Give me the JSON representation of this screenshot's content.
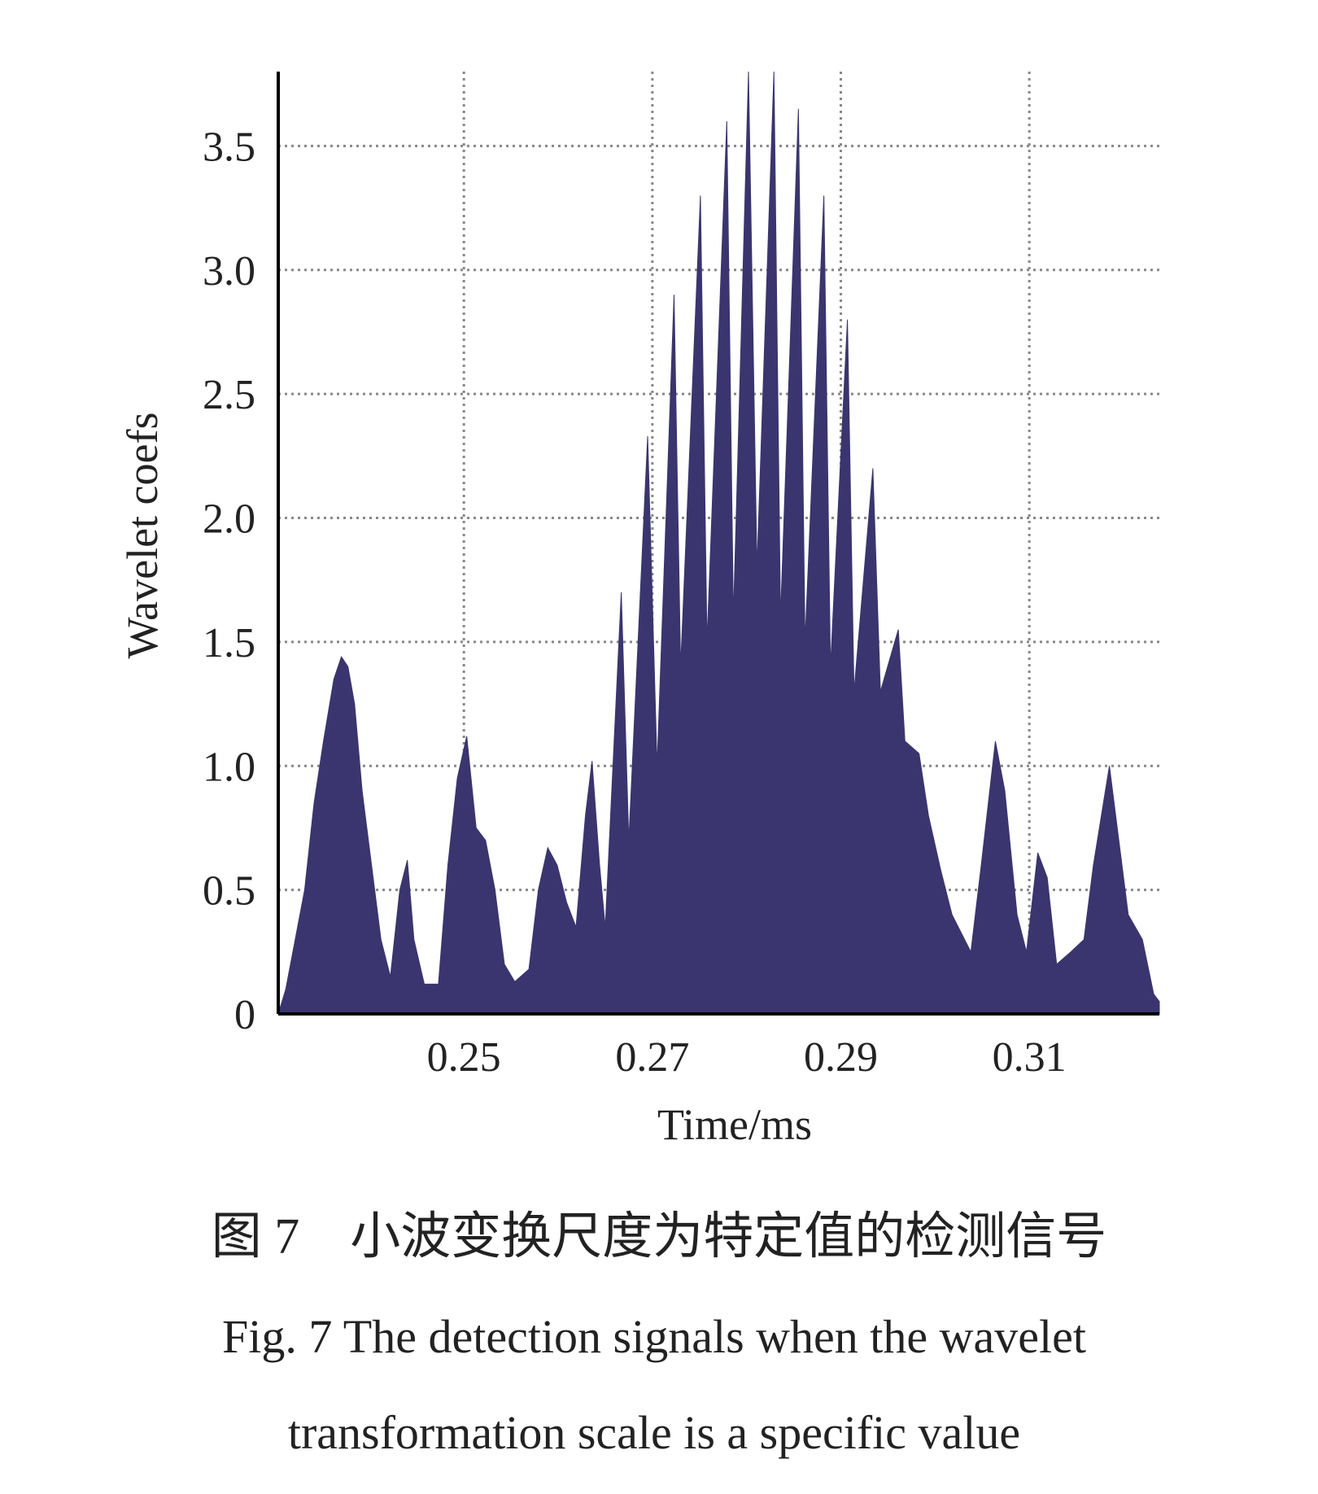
{
  "chart_data": {
    "type": "area",
    "xlabel": "Time/ms",
    "ylabel": "Wavelet coefs",
    "x": [
      0.2303,
      0.2311,
      0.2321,
      0.2331,
      0.2341,
      0.2351,
      0.2362,
      0.237,
      0.2377,
      0.2384,
      0.2392,
      0.2402,
      0.2412,
      0.2422,
      0.2432,
      0.244,
      0.2447,
      0.2458,
      0.2473,
      0.2483,
      0.2493,
      0.2503,
      0.2513,
      0.2523,
      0.2533,
      0.2543,
      0.2554,
      0.2569,
      0.2579,
      0.2589,
      0.2599,
      0.2609,
      0.2619,
      0.2629,
      0.2636,
      0.2644,
      0.265,
      0.2667,
      0.2675,
      0.2695,
      0.2705,
      0.2723,
      0.273,
      0.2751,
      0.2758,
      0.2779,
      0.2786,
      0.2802,
      0.2811,
      0.2829,
      0.2836,
      0.2855,
      0.2862,
      0.2882,
      0.2889,
      0.2907,
      0.2914,
      0.2934,
      0.2942,
      0.2961,
      0.2968,
      0.2983,
      0.2993,
      0.3006,
      0.3018,
      0.3038,
      0.3049,
      0.3064,
      0.3074,
      0.3087,
      0.3097,
      0.3109,
      0.3119,
      0.3129,
      0.3144,
      0.3158,
      0.3168,
      0.3185,
      0.3195,
      0.3205,
      0.322,
      0.3232,
      0.3238
    ],
    "values": [
      0,
      0.1,
      0.3,
      0.5,
      0.85,
      1.1,
      1.35,
      1.44,
      1.4,
      1.25,
      0.9,
      0.6,
      0.3,
      0.15,
      0.5,
      0.62,
      0.3,
      0.12,
      0.12,
      0.6,
      0.95,
      1.12,
      0.75,
      0.7,
      0.5,
      0.2,
      0.13,
      0.18,
      0.5,
      0.67,
      0.6,
      0.45,
      0.35,
      0.8,
      1.02,
      0.6,
      0.35,
      1.7,
      0.7,
      2.33,
      1.0,
      2.9,
      1.4,
      3.3,
      1.5,
      3.6,
      1.6,
      3.8,
      1.8,
      3.8,
      1.6,
      3.65,
      1.5,
      3.3,
      1.4,
      2.8,
      1.3,
      2.2,
      1.3,
      1.55,
      1.1,
      1.05,
      0.8,
      0.58,
      0.4,
      0.25,
      0.6,
      1.1,
      0.9,
      0.4,
      0.25,
      0.65,
      0.55,
      0.2,
      0.25,
      0.3,
      0.6,
      1.0,
      0.7,
      0.4,
      0.3,
      0.08,
      0.05
    ],
    "color": "#3a356e",
    "xlim": [
      0.2303,
      0.3238
    ],
    "ylim": [
      0,
      3.8
    ],
    "xticks": [
      0.25,
      0.27,
      0.29,
      0.31
    ],
    "yticks": [
      0,
      0.5,
      {
        "value": 1,
        "label": "1.0"
      },
      1.5,
      {
        "value": 2,
        "label": "2.0"
      },
      2.5,
      {
        "value": 3,
        "label": "3.0"
      },
      3.5
    ],
    "grid": true,
    "caption": [
      "图 7　小波变换尺度为特定值的检测信号",
      "Fig. 7  The detection signals when the wavelet",
      "transformation scale is a specific value"
    ]
  }
}
